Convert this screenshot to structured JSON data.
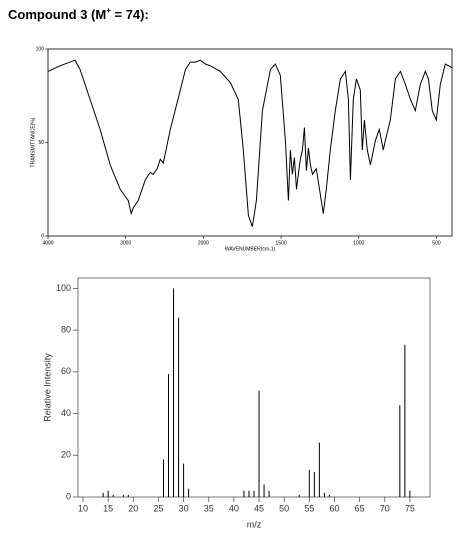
{
  "title": [
    "Compound 3 (M",
    "+",
    " = 74):"
  ],
  "chart_data": [
    {
      "type": "line",
      "xlabel": "WAVENUMBER(cm-1)",
      "ylabel": "TRANSMITTANCE(%)",
      "xlim": [
        4000,
        400
      ],
      "ylim": [
        0,
        100
      ],
      "xticks": [
        4000,
        3000,
        2000,
        1500,
        1000,
        500
      ],
      "yticks": [
        0,
        50,
        100
      ],
      "x_scale_change_at": 2000,
      "x_scale_ratio": 2,
      "x": [
        4000,
        3845,
        3652,
        3587,
        3458,
        3329,
        3200,
        3071,
        2968,
        2929,
        2903,
        2839,
        2748,
        2684,
        2645,
        2594,
        2555,
        2516,
        2426,
        2297,
        2232,
        2168,
        2103,
        2039,
        1987,
        1955,
        1891,
        1826,
        1775,
        1743,
        1710,
        1685,
        1659,
        1620,
        1569,
        1537,
        1505,
        1472,
        1453,
        1440,
        1427,
        1414,
        1401,
        1389,
        1376,
        1363,
        1350,
        1337,
        1324,
        1311,
        1298,
        1273,
        1247,
        1228,
        1209,
        1183,
        1151,
        1118,
        1086,
        1067,
        1054,
        1035,
        1015,
        990,
        977,
        964,
        945,
        925,
        893,
        868,
        842,
        829,
        797,
        764,
        732,
        700,
        668,
        636,
        604,
        572,
        552,
        527,
        501,
        475,
        443,
        400
      ],
      "series": [
        {
          "color": "#000000",
          "values": [
            88,
            91,
            94,
            89,
            73,
            57,
            38,
            25,
            19,
            12,
            15,
            19,
            30,
            34,
            33,
            36,
            41,
            39,
            57,
            78,
            89,
            93,
            93,
            94,
            92,
            91,
            88,
            82,
            73,
            46,
            11,
            5,
            19,
            67,
            89,
            92,
            86,
            51,
            19,
            46,
            33,
            42,
            25,
            33,
            41,
            46,
            58,
            35,
            47,
            38,
            33,
            36,
            22,
            12,
            25,
            46,
            67,
            84,
            88,
            73,
            30,
            73,
            84,
            78,
            46,
            62,
            46,
            38,
            51,
            57,
            46,
            51,
            62,
            84,
            88,
            81,
            73,
            67,
            81,
            88,
            84,
            67,
            62,
            81,
            92,
            90
          ]
        }
      ]
    },
    {
      "type": "bar",
      "xlabel": "m/z",
      "ylabel": "Relative Intensity",
      "xlim": [
        9,
        79
      ],
      "ylim": [
        0,
        105
      ],
      "xticks": [
        10,
        15,
        20,
        25,
        30,
        35,
        40,
        45,
        50,
        55,
        60,
        65,
        70,
        75
      ],
      "yticks": [
        0,
        20,
        40,
        60,
        80,
        100
      ],
      "color": "#000000",
      "x": [
        14,
        15,
        16,
        18,
        19,
        26,
        27,
        28,
        29,
        30,
        31,
        42,
        43,
        44,
        45,
        46,
        47,
        53,
        55,
        56,
        57,
        58,
        59,
        73,
        74,
        75
      ],
      "values": [
        2,
        3,
        1,
        1,
        1,
        18,
        59,
        100,
        86,
        16,
        4,
        3,
        3,
        3,
        51,
        6,
        3,
        1,
        13,
        12,
        26,
        2,
        1,
        44,
        73,
        3
      ]
    }
  ]
}
